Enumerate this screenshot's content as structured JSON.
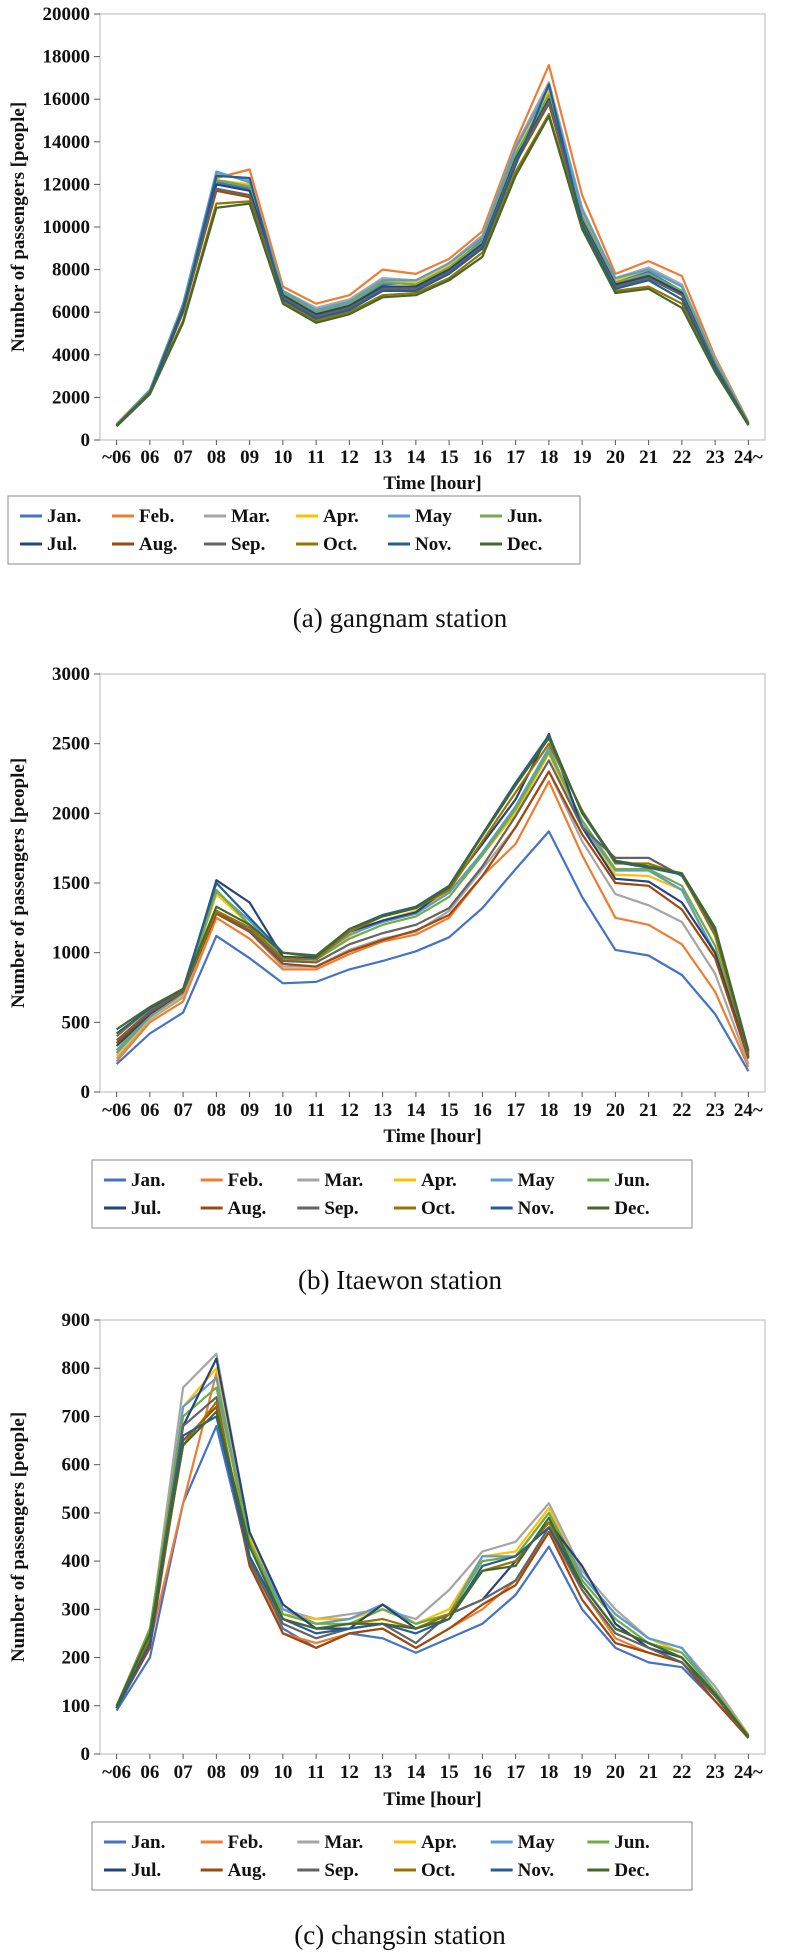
{
  "chart_data": [
    {
      "type": "line",
      "caption": "(a)  gangnam  station",
      "xlabel": "Time [hour]",
      "ylabel": "Number of passengers [people]",
      "ylim": [
        0,
        20000
      ],
      "yticks": [
        0,
        2000,
        4000,
        6000,
        8000,
        10000,
        12000,
        14000,
        16000,
        18000,
        20000
      ],
      "categories": [
        "~06",
        "06",
        "07",
        "08",
        "09",
        "10",
        "11",
        "12",
        "13",
        "14",
        "15",
        "16",
        "17",
        "18",
        "19",
        "20",
        "21",
        "22",
        "23",
        "24~"
      ],
      "legend_position": "bottom",
      "series": [
        {
          "name": "Jan.",
          "color": "#4472C4",
          "values": [
            700,
            2300,
            6200,
            12100,
            11800,
            7000,
            6000,
            6400,
            7300,
            7400,
            8200,
            9400,
            13500,
            16500,
            10500,
            7500,
            7900,
            7000,
            3800,
            800
          ]
        },
        {
          "name": "Feb.",
          "color": "#ED7D31",
          "values": [
            750,
            2350,
            6100,
            12300,
            12700,
            7200,
            6400,
            6800,
            8000,
            7800,
            8500,
            9800,
            14000,
            17600,
            11500,
            7800,
            8400,
            7700,
            3900,
            850
          ]
        },
        {
          "name": "Mar.",
          "color": "#A5A5A5",
          "values": [
            720,
            2300,
            6300,
            12500,
            12200,
            7000,
            6200,
            6600,
            7600,
            7500,
            8300,
            9600,
            13800,
            16800,
            10900,
            7600,
            8100,
            7300,
            3800,
            800
          ]
        },
        {
          "name": "Apr.",
          "color": "#FFC000",
          "values": [
            710,
            2300,
            6200,
            12200,
            12000,
            6900,
            6100,
            6500,
            7500,
            7400,
            8200,
            9500,
            13600,
            16400,
            10700,
            7500,
            8000,
            7200,
            3700,
            780
          ]
        },
        {
          "name": "May",
          "color": "#5B9BD5",
          "values": [
            720,
            2350,
            6400,
            12600,
            12100,
            7000,
            6100,
            6500,
            7500,
            7500,
            8300,
            9500,
            13700,
            16600,
            10800,
            7600,
            8000,
            7200,
            3700,
            790
          ]
        },
        {
          "name": "Jun.",
          "color": "#70AD47",
          "values": [
            700,
            2300,
            6300,
            12200,
            11900,
            6900,
            6000,
            6400,
            7400,
            7300,
            8100,
            9300,
            13400,
            16200,
            10500,
            7400,
            7800,
            7000,
            3600,
            770
          ]
        },
        {
          "name": "Jul.",
          "color": "#264478",
          "values": [
            690,
            2250,
            6200,
            12000,
            11700,
            6800,
            5900,
            6300,
            7200,
            7200,
            8000,
            9200,
            13200,
            16000,
            10300,
            7300,
            7700,
            6900,
            3500,
            750
          ]
        },
        {
          "name": "Aug.",
          "color": "#9E480E",
          "values": [
            680,
            2200,
            6000,
            11700,
            11400,
            6700,
            5800,
            6200,
            7100,
            7100,
            7800,
            9000,
            13000,
            15800,
            10200,
            7200,
            7600,
            6800,
            3400,
            730
          ]
        },
        {
          "name": "Sep.",
          "color": "#636363",
          "values": [
            690,
            2250,
            6100,
            11800,
            11500,
            6700,
            5800,
            6200,
            7100,
            7100,
            7900,
            9100,
            13100,
            15900,
            10200,
            7200,
            7600,
            6800,
            3500,
            740
          ]
        },
        {
          "name": "Oct.",
          "color": "#997300",
          "values": [
            660,
            2200,
            5600,
            11100,
            11200,
            6500,
            5600,
            6000,
            6800,
            6900,
            7600,
            8800,
            12600,
            15300,
            10000,
            7000,
            7200,
            6400,
            3300,
            700
          ]
        },
        {
          "name": "Nov.",
          "color": "#255E91",
          "values": [
            670,
            2200,
            6100,
            12400,
            12300,
            6600,
            5700,
            6100,
            7000,
            7000,
            7800,
            9000,
            12900,
            16700,
            10100,
            7100,
            7500,
            6600,
            3400,
            720
          ]
        },
        {
          "name": "Dec.",
          "color": "#43682B",
          "values": [
            640,
            2150,
            5500,
            10900,
            11100,
            6400,
            5500,
            5900,
            6700,
            6800,
            7500,
            8600,
            12400,
            15200,
            9900,
            6900,
            7100,
            6200,
            3200,
            690
          ]
        }
      ]
    },
    {
      "type": "line",
      "caption": "(b)  Itaewon  station",
      "xlabel": "Time [hour]",
      "ylabel": "Number of passengers [people]",
      "ylim": [
        0,
        3000
      ],
      "yticks": [
        0,
        500,
        1000,
        1500,
        2000,
        2500,
        3000
      ],
      "categories": [
        "~06",
        "06",
        "07",
        "08",
        "09",
        "10",
        "11",
        "12",
        "13",
        "14",
        "15",
        "16",
        "17",
        "18",
        "19",
        "20",
        "21",
        "22",
        "23",
        "24~"
      ],
      "legend_position": "bottom",
      "series": [
        {
          "name": "Jan.",
          "color": "#4472C4",
          "values": [
            200,
            420,
            570,
            1120,
            960,
            780,
            790,
            880,
            940,
            1010,
            1110,
            1320,
            1600,
            1870,
            1400,
            1020,
            980,
            840,
            560,
            150
          ]
        },
        {
          "name": "Feb.",
          "color": "#ED7D31",
          "values": [
            220,
            500,
            650,
            1250,
            1100,
            880,
            880,
            990,
            1080,
            1130,
            1250,
            1550,
            1780,
            2230,
            1700,
            1250,
            1200,
            1060,
            720,
            180
          ]
        },
        {
          "name": "Mar.",
          "color": "#A5A5A5",
          "values": [
            240,
            520,
            680,
            1300,
            1150,
            900,
            900,
            1020,
            1100,
            1150,
            1300,
            1600,
            1900,
            2300,
            1800,
            1420,
            1340,
            1220,
            850,
            200
          ]
        },
        {
          "name": "Apr.",
          "color": "#FFC000",
          "values": [
            260,
            530,
            700,
            1420,
            1200,
            1000,
            960,
            1120,
            1230,
            1300,
            1440,
            1700,
            2000,
            2430,
            1900,
            1560,
            1550,
            1450,
            980,
            240
          ]
        },
        {
          "name": "May",
          "color": "#5B9BD5",
          "values": [
            280,
            540,
            710,
            1440,
            1230,
            970,
            960,
            1130,
            1220,
            1280,
            1430,
            1720,
            2050,
            2470,
            1920,
            1590,
            1590,
            1450,
            1000,
            250
          ]
        },
        {
          "name": "Jun.",
          "color": "#70AD47",
          "values": [
            300,
            560,
            720,
            1450,
            1200,
            950,
            950,
            1100,
            1200,
            1260,
            1400,
            1700,
            2030,
            2440,
            1950,
            1600,
            1600,
            1480,
            1050,
            260
          ]
        },
        {
          "name": "Jul.",
          "color": "#264478",
          "values": [
            330,
            560,
            720,
            1520,
            1360,
            970,
            960,
            1150,
            1230,
            1290,
            1470,
            1780,
            2100,
            2570,
            1900,
            1530,
            1510,
            1360,
            1000,
            250
          ]
        },
        {
          "name": "Aug.",
          "color": "#9E480E",
          "values": [
            350,
            570,
            720,
            1280,
            1150,
            920,
            900,
            1010,
            1090,
            1160,
            1270,
            1550,
            1900,
            2300,
            1850,
            1500,
            1480,
            1310,
            960,
            240
          ]
        },
        {
          "name": "Sep.",
          "color": "#636363",
          "values": [
            370,
            580,
            730,
            1300,
            1160,
            940,
            930,
            1060,
            1140,
            1200,
            1320,
            1620,
            1980,
            2380,
            1900,
            1680,
            1680,
            1550,
            1150,
            270
          ]
        },
        {
          "name": "Oct.",
          "color": "#997300",
          "values": [
            400,
            600,
            740,
            1300,
            1180,
            960,
            950,
            1150,
            1260,
            1320,
            1450,
            1800,
            2150,
            2500,
            2020,
            1640,
            1640,
            1560,
            1120,
            280
          ]
        },
        {
          "name": "Nov.",
          "color": "#255E91",
          "values": [
            420,
            600,
            740,
            1500,
            1250,
            1000,
            970,
            1170,
            1270,
            1330,
            1480,
            1850,
            2220,
            2560,
            2000,
            1650,
            1610,
            1560,
            1170,
            290
          ]
        },
        {
          "name": "Dec.",
          "color": "#43682B",
          "values": [
            450,
            610,
            740,
            1330,
            1200,
            1000,
            980,
            1170,
            1260,
            1320,
            1470,
            1840,
            2200,
            2540,
            2010,
            1660,
            1620,
            1570,
            1180,
            300
          ]
        }
      ]
    },
    {
      "type": "line",
      "caption": "(c)  changsin  station",
      "xlabel": "Time [hour]",
      "ylabel": "Number of passengers [people]",
      "ylim": [
        0,
        900
      ],
      "yticks": [
        0,
        100,
        200,
        300,
        400,
        500,
        600,
        700,
        800,
        900
      ],
      "categories": [
        "~06",
        "06",
        "07",
        "08",
        "09",
        "10",
        "11",
        "12",
        "13",
        "14",
        "15",
        "16",
        "17",
        "18",
        "19",
        "20",
        "21",
        "22",
        "23",
        "24~"
      ],
      "legend_position": "bottom",
      "series": [
        {
          "name": "Jan.",
          "color": "#4472C4",
          "values": [
            90,
            200,
            520,
            680,
            400,
            260,
            220,
            250,
            240,
            210,
            240,
            270,
            330,
            430,
            300,
            220,
            190,
            180,
            110,
            35
          ]
        },
        {
          "name": "Feb.",
          "color": "#ED7D31",
          "values": [
            95,
            230,
            520,
            790,
            410,
            250,
            230,
            250,
            260,
            220,
            260,
            300,
            360,
            460,
            340,
            240,
            210,
            190,
            120,
            35
          ]
        },
        {
          "name": "Mar.",
          "color": "#A5A5A5",
          "values": [
            100,
            250,
            760,
            830,
            460,
            300,
            280,
            290,
            300,
            280,
            340,
            420,
            440,
            520,
            380,
            300,
            240,
            220,
            140,
            40
          ]
        },
        {
          "name": "Apr.",
          "color": "#FFC000",
          "values": [
            100,
            250,
            720,
            800,
            450,
            290,
            280,
            280,
            300,
            270,
            300,
            410,
            420,
            510,
            370,
            290,
            240,
            210,
            130,
            40
          ]
        },
        {
          "name": "May",
          "color": "#5B9BD5",
          "values": [
            100,
            240,
            720,
            780,
            440,
            300,
            270,
            280,
            310,
            270,
            290,
            410,
            410,
            500,
            370,
            290,
            240,
            220,
            130,
            38
          ]
        },
        {
          "name": "Jun.",
          "color": "#70AD47",
          "values": [
            100,
            260,
            700,
            760,
            440,
            290,
            270,
            270,
            300,
            270,
            290,
            400,
            410,
            500,
            360,
            280,
            230,
            210,
            130,
            38
          ]
        },
        {
          "name": "Jul.",
          "color": "#264478",
          "values": [
            95,
            240,
            680,
            820,
            460,
            310,
            260,
            260,
            310,
            260,
            290,
            320,
            400,
            480,
            390,
            270,
            220,
            200,
            120,
            35
          ]
        },
        {
          "name": "Aug.",
          "color": "#9E480E",
          "values": [
            95,
            220,
            650,
            720,
            390,
            250,
            220,
            250,
            260,
            220,
            260,
            310,
            350,
            460,
            320,
            230,
            210,
            190,
            110,
            33
          ]
        },
        {
          "name": "Sep.",
          "color": "#636363",
          "values": [
            95,
            230,
            680,
            740,
            400,
            270,
            240,
            260,
            270,
            230,
            290,
            320,
            360,
            470,
            340,
            250,
            220,
            190,
            120,
            35
          ]
        },
        {
          "name": "Oct.",
          "color": "#997300",
          "values": [
            100,
            240,
            640,
            730,
            410,
            280,
            260,
            270,
            280,
            260,
            290,
            380,
            400,
            480,
            350,
            260,
            230,
            200,
            125,
            36
          ]
        },
        {
          "name": "Nov.",
          "color": "#255E91",
          "values": [
            95,
            230,
            660,
            700,
            410,
            280,
            250,
            260,
            270,
            250,
            280,
            390,
            410,
            470,
            350,
            260,
            230,
            200,
            125,
            36
          ]
        },
        {
          "name": "Dec.",
          "color": "#43682B",
          "values": [
            100,
            250,
            640,
            710,
            430,
            280,
            260,
            270,
            270,
            260,
            280,
            380,
            390,
            490,
            350,
            260,
            230,
            200,
            125,
            36
          ]
        }
      ]
    }
  ]
}
